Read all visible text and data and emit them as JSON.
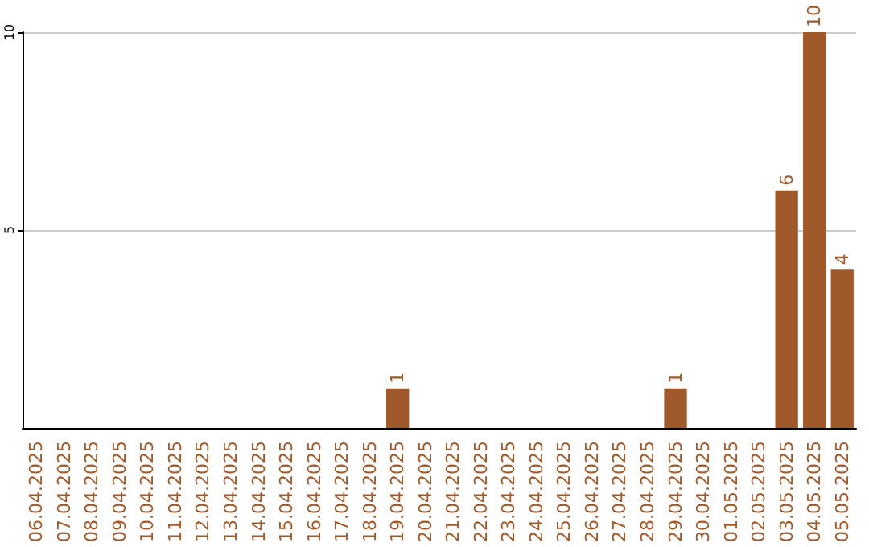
{
  "chart_data": {
    "type": "bar",
    "categories": [
      "06.04.2025",
      "07.04.2025",
      "08.04.2025",
      "09.04.2025",
      "10.04.2025",
      "11.04.2025",
      "12.04.2025",
      "13.04.2025",
      "14.04.2025",
      "15.04.2025",
      "16.04.2025",
      "17.04.2025",
      "18.04.2025",
      "19.04.2025",
      "20.04.2025",
      "21.04.2025",
      "22.04.2025",
      "23.04.2025",
      "24.04.2025",
      "25.04.2025",
      "26.04.2025",
      "27.04.2025",
      "28.04.2025",
      "29.04.2025",
      "30.04.2025",
      "01.05.2025",
      "02.05.2025",
      "03.05.2025",
      "04.05.2025",
      "05.05.2025"
    ],
    "values": [
      0,
      0,
      0,
      0,
      0,
      0,
      0,
      0,
      0,
      0,
      0,
      0,
      0,
      1,
      0,
      0,
      0,
      0,
      0,
      0,
      0,
      0,
      0,
      1,
      0,
      0,
      0,
      6,
      10,
      4
    ],
    "value_labels": [
      null,
      null,
      null,
      null,
      null,
      null,
      null,
      null,
      null,
      null,
      null,
      null,
      null,
      "1",
      null,
      null,
      null,
      null,
      null,
      null,
      null,
      null,
      null,
      "1",
      null,
      null,
      null,
      "6",
      "10",
      "4"
    ],
    "color": "#a0592a",
    "ylim": [
      0,
      10
    ],
    "yticks": [
      5,
      10
    ],
    "grid": "y"
  }
}
